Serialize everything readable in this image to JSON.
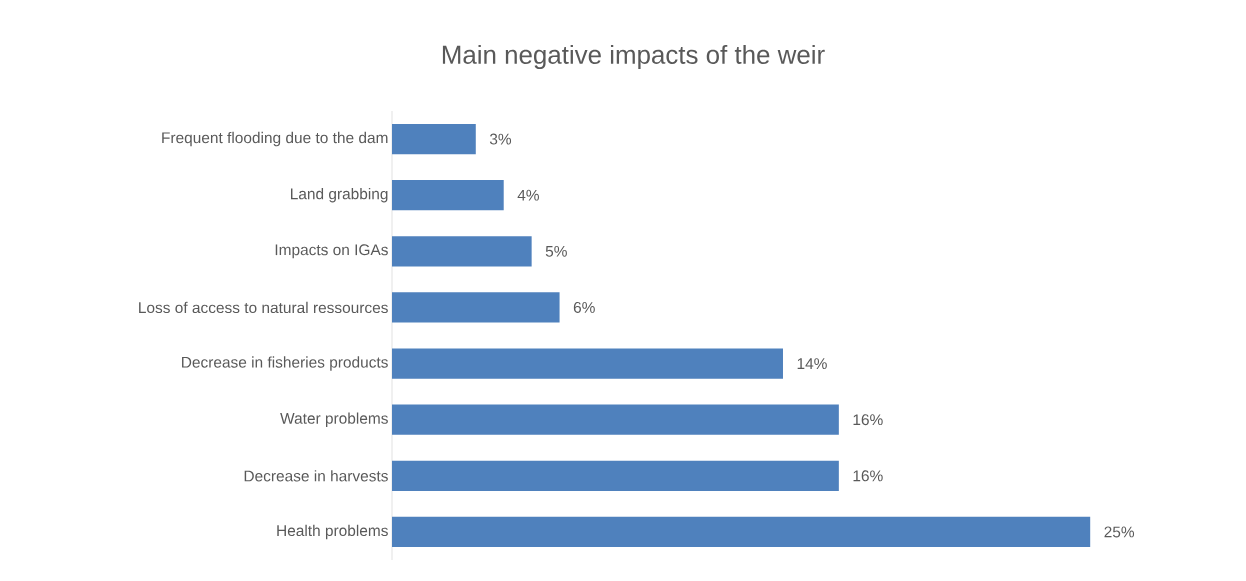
{
  "chart_data": {
    "type": "bar",
    "orientation": "horizontal",
    "title": "Main negative impacts of the weir",
    "categories": [
      "Frequent flooding due to the dam",
      "Land grabbing",
      "Impacts on IGAs",
      "Loss of access to natural ressources",
      "Decrease in fisheries products",
      "Water problems",
      "Decrease in harvests",
      "Health problems"
    ],
    "values": [
      3,
      4,
      5,
      6,
      14,
      16,
      16,
      25
    ],
    "value_labels": [
      "3%",
      "4%",
      "5%",
      "6%",
      "14%",
      "16%",
      "16%",
      "25%"
    ],
    "color": "#4f81bd"
  }
}
